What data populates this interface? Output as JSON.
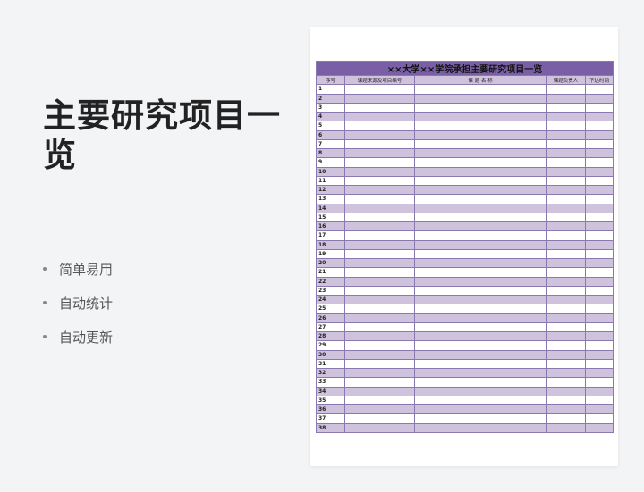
{
  "left": {
    "title": "主要研究项目一览",
    "bullets": [
      "简单易用",
      "自动统计",
      "自动更新"
    ]
  },
  "sheet": {
    "title": "××大学××学院承担主要研究项目一览",
    "columns": [
      "序号",
      "课题来源及项目编号",
      "课 题 名 称",
      "课题负责人",
      "下达时间"
    ],
    "row_count": 38,
    "colors": {
      "title_bg": "#7b5fa6",
      "alt_row": "#cfc2dd",
      "border": "#8a78b0"
    }
  }
}
